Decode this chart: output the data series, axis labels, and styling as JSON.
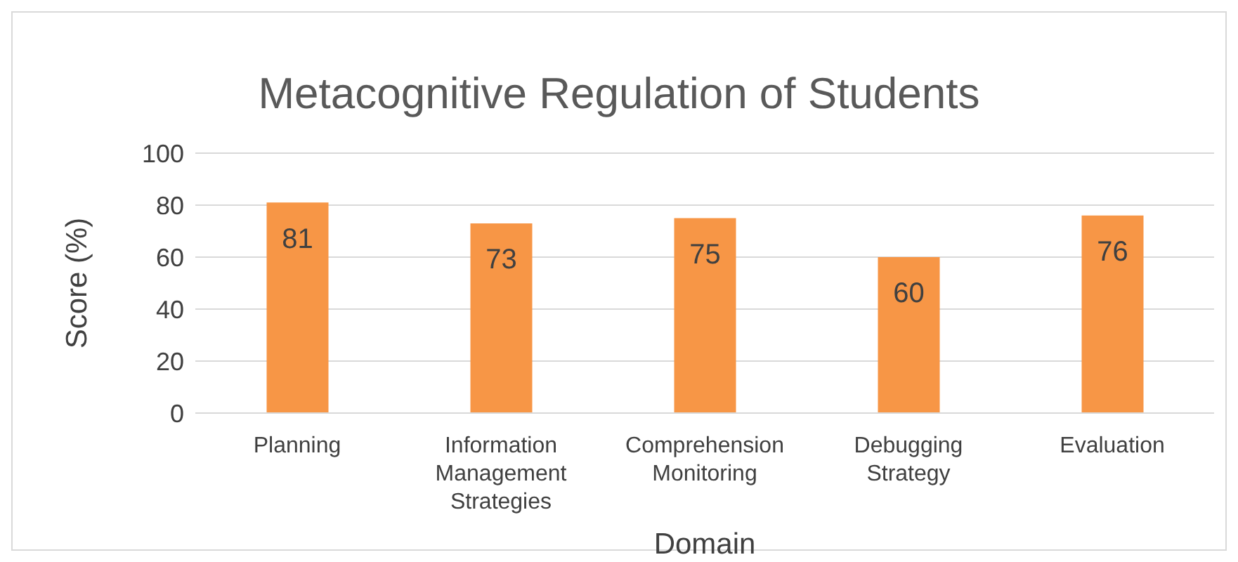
{
  "chart_data": {
    "type": "bar",
    "title": "Metacognitive Regulation of Students",
    "xlabel": "Domain",
    "ylabel": "Score (%)",
    "categories": [
      "Planning",
      "Information Management Strategies",
      "Comprehension Monitoring",
      "Debugging Strategy",
      "Evaluation"
    ],
    "values": [
      81,
      73,
      75,
      60,
      76
    ],
    "color": "#f79646",
    "ylim": [
      0,
      100
    ],
    "yticks": [
      0,
      20,
      40,
      60,
      80,
      100
    ],
    "grid": "y",
    "data_labels": true
  }
}
